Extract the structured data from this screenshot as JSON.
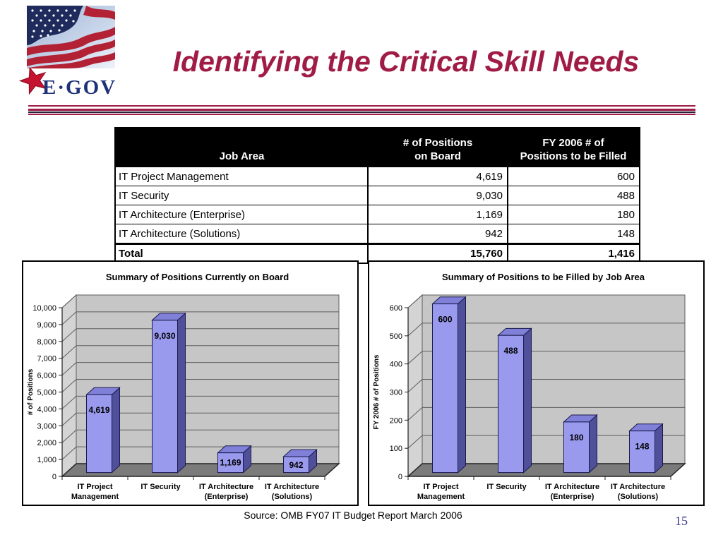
{
  "header": {
    "title": "Identifying the Critical Skill Needs",
    "logo_text": "E·GOV",
    "title_color": "#A01C46",
    "logo_text_color": "#1F3278",
    "logo_star_color": "#C41230"
  },
  "table": {
    "headers": [
      [
        "Job Area"
      ],
      [
        "# of Positions",
        "on Board"
      ],
      [
        "FY 2006 # of",
        "Positions to be Filled"
      ]
    ],
    "rows": [
      [
        "IT Project Management",
        "4,619",
        "600"
      ],
      [
        "IT Security",
        "9,030",
        "488"
      ],
      [
        "IT Architecture (Enterprise)",
        "1,169",
        "180"
      ],
      [
        "IT Architecture (Solutions)",
        "942",
        "148"
      ]
    ],
    "total_row": [
      "Total",
      "15,760",
      "1,416"
    ]
  },
  "chart_data": [
    {
      "type": "bar",
      "variant": "3d-column",
      "title": "Summary of Positions Currently on Board",
      "categories": [
        [
          "IT Project",
          "Management"
        ],
        [
          "IT Security"
        ],
        [
          "IT Architecture",
          "(Enterprise)"
        ],
        [
          "IT Architecture",
          "(Solutions)"
        ]
      ],
      "values": [
        4619,
        9030,
        1169,
        942
      ],
      "data_labels": [
        "4,619",
        "9,030",
        "1,169",
        "942"
      ],
      "xlabel": "",
      "ylabel": "# of Positions",
      "ylim": [
        0,
        10000
      ],
      "ytick_interval": 1000,
      "ytick_labels": [
        "0",
        "1,000",
        "2,000",
        "3,000",
        "4,000",
        "5,000",
        "6,000",
        "7,000",
        "8,000",
        "9,000",
        "10,000"
      ],
      "grid": true,
      "legend": "none"
    },
    {
      "type": "bar",
      "variant": "3d-column",
      "title": "Summary of Positions to be Filled by Job Area",
      "categories": [
        [
          "IT Project",
          "Management"
        ],
        [
          "IT Security"
        ],
        [
          "IT Architecture",
          "(Enterprise)"
        ],
        [
          "IT Architecture",
          "(Solutions)"
        ]
      ],
      "values": [
        600,
        488,
        180,
        148
      ],
      "data_labels": [
        "600",
        "488",
        "180",
        "148"
      ],
      "xlabel": "",
      "ylabel": "FY 2006 # of Positions",
      "ylim": [
        0,
        600
      ],
      "ytick_interval": 100,
      "ytick_labels": [
        "0",
        "100",
        "200",
        "300",
        "400",
        "500",
        "600"
      ],
      "grid": true,
      "legend": "none"
    }
  ],
  "chart_colors": {
    "bar_front": "#9999EE",
    "bar_side": "#50509A",
    "bar_top": "#8080D8",
    "bar_outline": "#1A1A4E",
    "wall": "#C6C6C6",
    "side_wall": "#D4D4D4",
    "floor": "#7B7B7B",
    "gridline": "#5E5E5E",
    "axis": "#222222"
  },
  "footer": {
    "source": "Source:  OMB FY07 IT Budget Report March 2006",
    "page_number": "15"
  }
}
